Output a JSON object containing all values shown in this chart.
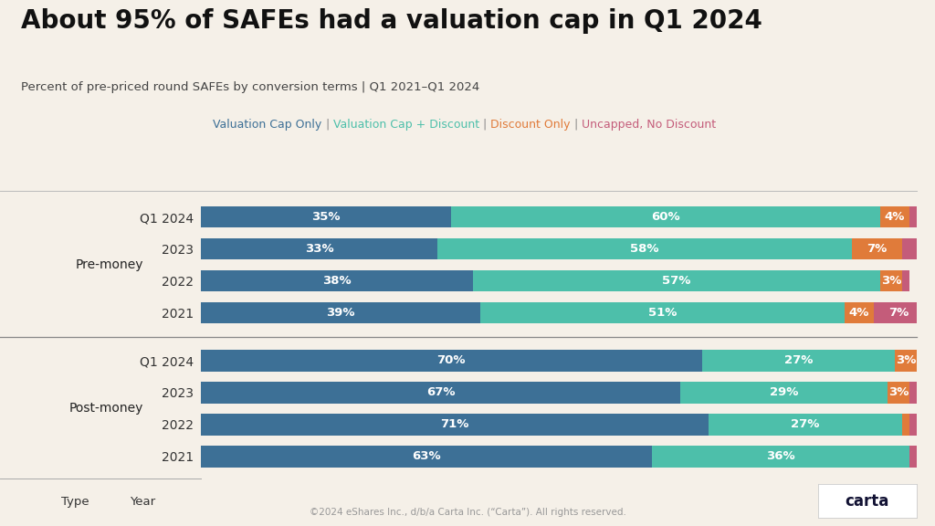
{
  "title": "About 95% of SAFEs had a valuation cap in Q1 2024",
  "subtitle": "Percent of pre-priced round SAFEs by conversion terms | Q1 2021–Q1 2024",
  "col_header_type": "Type",
  "col_header_year": "Year",
  "legend_items": [
    {
      "label": "Valuation Cap Only",
      "color": "#3d7096"
    },
    {
      "label": "Valuation Cap + Discount",
      "color": "#4dbfaa"
    },
    {
      "label": "Discount Only",
      "color": "#e07b3a"
    },
    {
      "label": "Uncapped, No Discount",
      "color": "#c45c7a"
    }
  ],
  "separator_color": "#aaaaaa",
  "colors": {
    "cap_only": "#3d7096",
    "cap_discount": "#4dbfaa",
    "discount_only": "#e07b3a",
    "uncapped": "#c45c7a"
  },
  "background_color": "#f5f0e8",
  "groups": [
    {
      "name": "Post-money",
      "rows": [
        {
          "year": "2021",
          "cap_only": 63,
          "cap_discount": 36,
          "discount_only": 0,
          "uncapped": 1
        },
        {
          "year": "2022",
          "cap_only": 71,
          "cap_discount": 27,
          "discount_only": 1,
          "uncapped": 1
        },
        {
          "year": "2023",
          "cap_only": 67,
          "cap_discount": 29,
          "discount_only": 3,
          "uncapped": 1
        },
        {
          "year": "Q1 2024",
          "cap_only": 70,
          "cap_discount": 27,
          "discount_only": 3,
          "uncapped": 0
        }
      ]
    },
    {
      "name": "Pre-money",
      "rows": [
        {
          "year": "2021",
          "cap_only": 39,
          "cap_discount": 51,
          "discount_only": 4,
          "uncapped": 7
        },
        {
          "year": "2022",
          "cap_only": 38,
          "cap_discount": 57,
          "discount_only": 3,
          "uncapped": 1
        },
        {
          "year": "2023",
          "cap_only": 33,
          "cap_discount": 58,
          "discount_only": 7,
          "uncapped": 2
        },
        {
          "year": "Q1 2024",
          "cap_only": 35,
          "cap_discount": 60,
          "discount_only": 4,
          "uncapped": 1
        }
      ]
    }
  ],
  "footer": "©2024 eShares Inc., d/b/a Carta Inc. (“Carta”). All rights reserved.",
  "bar_height": 0.68,
  "label_min_pct": 3,
  "font_family": "DejaVu Sans"
}
